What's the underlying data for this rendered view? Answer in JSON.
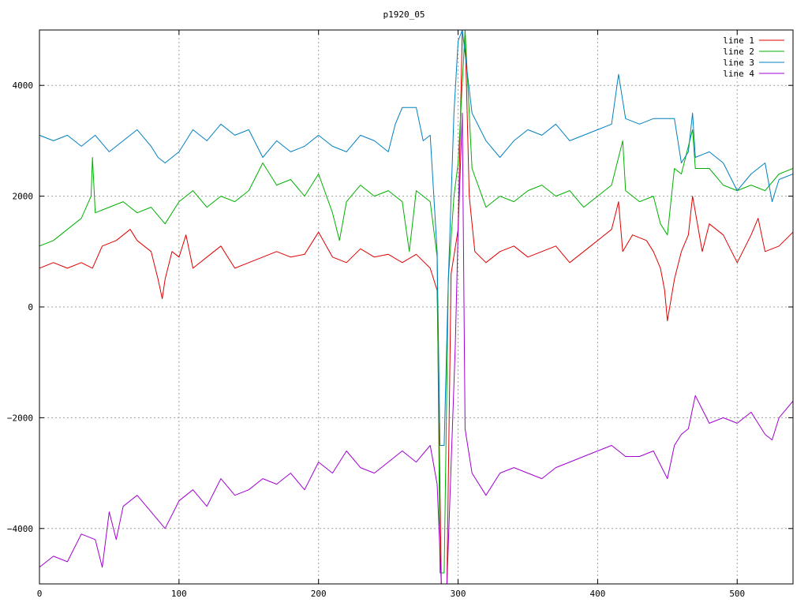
{
  "chart_data": {
    "type": "line",
    "title": "p1920_05",
    "xlabel": "",
    "ylabel": "",
    "xlim": [
      0,
      540
    ],
    "ylim": [
      -5000,
      5000
    ],
    "x_ticks": [
      0,
      100,
      200,
      300,
      400,
      500
    ],
    "y_ticks": [
      -4000,
      -2000,
      0,
      2000,
      4000
    ],
    "y_tick_labels": [
      "−4000",
      "−2000",
      "0",
      "2000",
      "4000"
    ],
    "grid": true,
    "legend_position": "top-right",
    "series": [
      {
        "name": "line 1",
        "color": "#e00000",
        "x": [
          0,
          10,
          20,
          30,
          38,
          45,
          55,
          65,
          70,
          80,
          85,
          88,
          90,
          95,
          100,
          105,
          110,
          120,
          130,
          140,
          150,
          160,
          170,
          180,
          190,
          200,
          210,
          220,
          230,
          240,
          250,
          260,
          270,
          280,
          285,
          288,
          292,
          295,
          300,
          303,
          305,
          308,
          312,
          320,
          330,
          340,
          350,
          360,
          370,
          380,
          390,
          400,
          410,
          415,
          418,
          425,
          435,
          440,
          445,
          448,
          450,
          455,
          460,
          465,
          468,
          475,
          480,
          490,
          500,
          510,
          515,
          520,
          530,
          540
        ],
        "y": [
          700,
          800,
          700,
          800,
          700,
          1100,
          1200,
          1400,
          1200,
          1000,
          500,
          150,
          500,
          1000,
          900,
          1300,
          700,
          900,
          1100,
          700,
          800,
          900,
          1000,
          900,
          950,
          1350,
          900,
          800,
          1050,
          900,
          950,
          800,
          950,
          700,
          300,
          -5000,
          -5000,
          600,
          1400,
          5000,
          5000,
          2000,
          1000,
          800,
          1000,
          1100,
          900,
          1000,
          1100,
          800,
          1000,
          1200,
          1400,
          1900,
          1000,
          1300,
          1200,
          1000,
          700,
          300,
          -250,
          500,
          1000,
          1300,
          2000,
          1000,
          1500,
          1300,
          800,
          1300,
          1600,
          1000,
          1100,
          1350
        ]
      },
      {
        "name": "line 2",
        "color": "#00b000",
        "x": [
          0,
          10,
          20,
          30,
          37,
          38,
          40,
          50,
          60,
          70,
          80,
          90,
          100,
          110,
          120,
          130,
          140,
          150,
          160,
          170,
          180,
          190,
          200,
          210,
          215,
          220,
          230,
          240,
          250,
          260,
          265,
          270,
          280,
          285,
          287,
          290,
          293,
          297,
          300,
          305,
          310,
          320,
          330,
          340,
          350,
          360,
          370,
          380,
          390,
          400,
          410,
          418,
          420,
          430,
          440,
          445,
          450,
          455,
          460,
          468,
          470,
          480,
          490,
          500,
          510,
          520,
          530,
          540
        ],
        "y": [
          1100,
          1200,
          1400,
          1600,
          2000,
          2700,
          1700,
          1800,
          1900,
          1700,
          1800,
          1500,
          1900,
          2100,
          1800,
          2000,
          1900,
          2100,
          2600,
          2200,
          2300,
          2000,
          2400,
          1700,
          1200,
          1900,
          2200,
          2000,
          2100,
          1900,
          1000,
          2100,
          1900,
          900,
          -4800,
          -4800,
          500,
          2000,
          2600,
          5000,
          2500,
          1800,
          2000,
          1900,
          2100,
          2200,
          2000,
          2100,
          1800,
          2000,
          2200,
          3000,
          2100,
          1900,
          2000,
          1500,
          1300,
          2500,
          2400,
          3200,
          2500,
          2500,
          2200,
          2100,
          2200,
          2100,
          2400,
          2500
        ]
      },
      {
        "name": "line 3",
        "color": "#0080c0",
        "x": [
          0,
          10,
          20,
          30,
          40,
          50,
          60,
          70,
          80,
          85,
          90,
          100,
          110,
          120,
          130,
          140,
          150,
          160,
          170,
          180,
          190,
          200,
          210,
          220,
          230,
          240,
          250,
          255,
          260,
          270,
          275,
          280,
          285,
          287,
          290,
          293,
          297,
          300,
          303,
          310,
          320,
          330,
          340,
          350,
          360,
          370,
          380,
          390,
          400,
          410,
          415,
          420,
          430,
          440,
          450,
          455,
          460,
          465,
          468,
          470,
          480,
          490,
          500,
          510,
          520,
          525,
          530,
          540
        ],
        "y": [
          3100,
          3000,
          3100,
          2900,
          3100,
          2800,
          3000,
          3200,
          2900,
          2700,
          2600,
          2800,
          3200,
          3000,
          3300,
          3100,
          3200,
          2700,
          3000,
          2800,
          2900,
          3100,
          2900,
          2800,
          3100,
          3000,
          2800,
          3300,
          3600,
          3600,
          3000,
          3100,
          1000,
          -2500,
          -2500,
          500,
          3500,
          4800,
          5000,
          3500,
          3000,
          2700,
          3000,
          3200,
          3100,
          3300,
          3000,
          3100,
          3200,
          3300,
          4200,
          3400,
          3300,
          3400,
          3400,
          3400,
          2600,
          2800,
          3500,
          2700,
          2800,
          2600,
          2100,
          2400,
          2600,
          1900,
          2300,
          2400
        ]
      },
      {
        "name": "line 4",
        "color": "#a000d0",
        "x": [
          0,
          10,
          20,
          30,
          40,
          45,
          50,
          55,
          60,
          70,
          80,
          90,
          100,
          110,
          120,
          130,
          140,
          150,
          160,
          170,
          180,
          190,
          200,
          210,
          220,
          230,
          240,
          250,
          260,
          270,
          280,
          285,
          288,
          292,
          298,
          300,
          303,
          305,
          310,
          320,
          330,
          340,
          350,
          360,
          370,
          380,
          390,
          400,
          410,
          420,
          430,
          440,
          450,
          455,
          460,
          465,
          470,
          480,
          490,
          500,
          510,
          520,
          525,
          530,
          540
        ],
        "y": [
          -4700,
          -4500,
          -4600,
          -4100,
          -4200,
          -4700,
          -3700,
          -4200,
          -3600,
          -3400,
          -3700,
          -4000,
          -3500,
          -3300,
          -3600,
          -3100,
          -3400,
          -3300,
          -3100,
          -3200,
          -3000,
          -3300,
          -2800,
          -3000,
          -2600,
          -2900,
          -3000,
          -2800,
          -2600,
          -2800,
          -2500,
          -3200,
          -5000,
          -5000,
          -700,
          1400,
          3500,
          -2200,
          -3000,
          -3400,
          -3000,
          -2900,
          -3000,
          -3100,
          -2900,
          -2800,
          -2700,
          -2600,
          -2500,
          -2700,
          -2700,
          -2600,
          -3100,
          -2500,
          -2300,
          -2200,
          -1600,
          -2100,
          -2000,
          -2100,
          -1900,
          -2300,
          -2400,
          -2000,
          -1700
        ]
      }
    ]
  }
}
